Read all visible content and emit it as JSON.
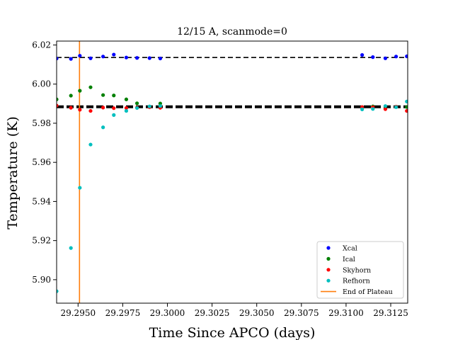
{
  "chart_data": {
    "type": "scatter",
    "title": "12/15 A, scanmode=0",
    "xlabel": "Time Since APCO (days)",
    "ylabel": "Temperature (K)",
    "xlim": [
      29.2938,
      29.31345
    ],
    "ylim": [
      5.888,
      6.022
    ],
    "xticks": [
      29.295,
      29.2975,
      29.3,
      29.3025,
      29.305,
      29.3075,
      29.31,
      29.3125
    ],
    "xtick_labels": [
      "29.2950",
      "29.2975",
      "29.3000",
      "29.3025",
      "29.3050",
      "29.3075",
      "29.3100",
      "29.3125"
    ],
    "yticks": [
      5.9,
      5.92,
      5.94,
      5.96,
      5.98,
      6.0,
      6.02
    ],
    "ytick_labels": [
      "5.90",
      "5.92",
      "5.94",
      "5.96",
      "5.98",
      "6.00",
      "6.02"
    ],
    "legend_position": "lower-right",
    "series": [
      {
        "name": "Xcal",
        "color": "#0000ff",
        "points": [
          [
            29.2938,
            6.0131
          ],
          [
            29.2946,
            6.0129
          ],
          [
            29.2951,
            6.0145
          ],
          [
            29.2957,
            6.0132
          ],
          [
            29.2964,
            6.0141
          ],
          [
            29.297,
            6.0151
          ],
          [
            29.2977,
            6.0136
          ],
          [
            29.2983,
            6.0134
          ],
          [
            29.299,
            6.0133
          ],
          [
            29.2996,
            6.0131
          ],
          [
            29.3109,
            6.0149
          ],
          [
            29.3115,
            6.0138
          ],
          [
            29.3122,
            6.0132
          ],
          [
            29.3128,
            6.0141
          ],
          [
            29.3134,
            6.0142
          ]
        ]
      },
      {
        "name": "Ical",
        "color": "#008000",
        "points": [
          [
            29.2938,
            5.9922
          ],
          [
            29.2946,
            5.9941
          ],
          [
            29.2951,
            5.9966
          ],
          [
            29.2957,
            5.9984
          ],
          [
            29.2964,
            5.9944
          ],
          [
            29.297,
            5.9942
          ],
          [
            29.2977,
            5.9922
          ],
          [
            29.2983,
            5.9902
          ],
          [
            29.299,
            5.9884
          ],
          [
            29.2996,
            5.9901
          ],
          [
            29.3109,
            5.9882
          ],
          [
            29.3115,
            5.9886
          ],
          [
            29.3122,
            5.9876
          ],
          [
            29.3128,
            5.9884
          ],
          [
            29.3134,
            5.9883
          ]
        ]
      },
      {
        "name": "Skyhorn",
        "color": "#ff0000",
        "points": [
          [
            29.2938,
            5.989
          ],
          [
            29.2946,
            5.9879
          ],
          [
            29.2951,
            5.9869
          ],
          [
            29.2957,
            5.9863
          ],
          [
            29.2964,
            5.988
          ],
          [
            29.297,
            5.9877
          ],
          [
            29.2977,
            5.9878
          ],
          [
            29.2983,
            5.988
          ],
          [
            29.299,
            5.9882
          ],
          [
            29.2996,
            5.9879
          ],
          [
            29.3109,
            5.9883
          ],
          [
            29.3115,
            5.9882
          ],
          [
            29.3122,
            5.9872
          ],
          [
            29.3128,
            5.9884
          ],
          [
            29.3134,
            5.9863
          ]
        ]
      },
      {
        "name": "Refhorn",
        "color": "#00bfbf",
        "points": [
          [
            29.2938,
            5.8941
          ],
          [
            29.2946,
            5.9162
          ],
          [
            29.2951,
            5.947
          ],
          [
            29.2957,
            5.9691
          ],
          [
            29.2964,
            5.9779
          ],
          [
            29.297,
            5.9842
          ],
          [
            29.2977,
            5.9863
          ],
          [
            29.2983,
            5.9878
          ],
          [
            29.299,
            5.9886
          ],
          [
            29.2996,
            5.9888
          ],
          [
            29.3109,
            5.9871
          ],
          [
            29.3115,
            5.9873
          ],
          [
            29.3122,
            5.9888
          ],
          [
            29.3128,
            5.9882
          ],
          [
            29.3134,
            5.9911
          ]
        ]
      }
    ],
    "reference_lines": [
      {
        "y": 6.0136,
        "style": "dashed",
        "width": "thin",
        "color": "#000000"
      },
      {
        "y": 5.9884,
        "style": "dashed",
        "width": "thick",
        "color": "#000000"
      }
    ],
    "vertical_line": {
      "name": "End of Plateau",
      "x": 29.29508,
      "color": "#ff7f0e"
    }
  }
}
